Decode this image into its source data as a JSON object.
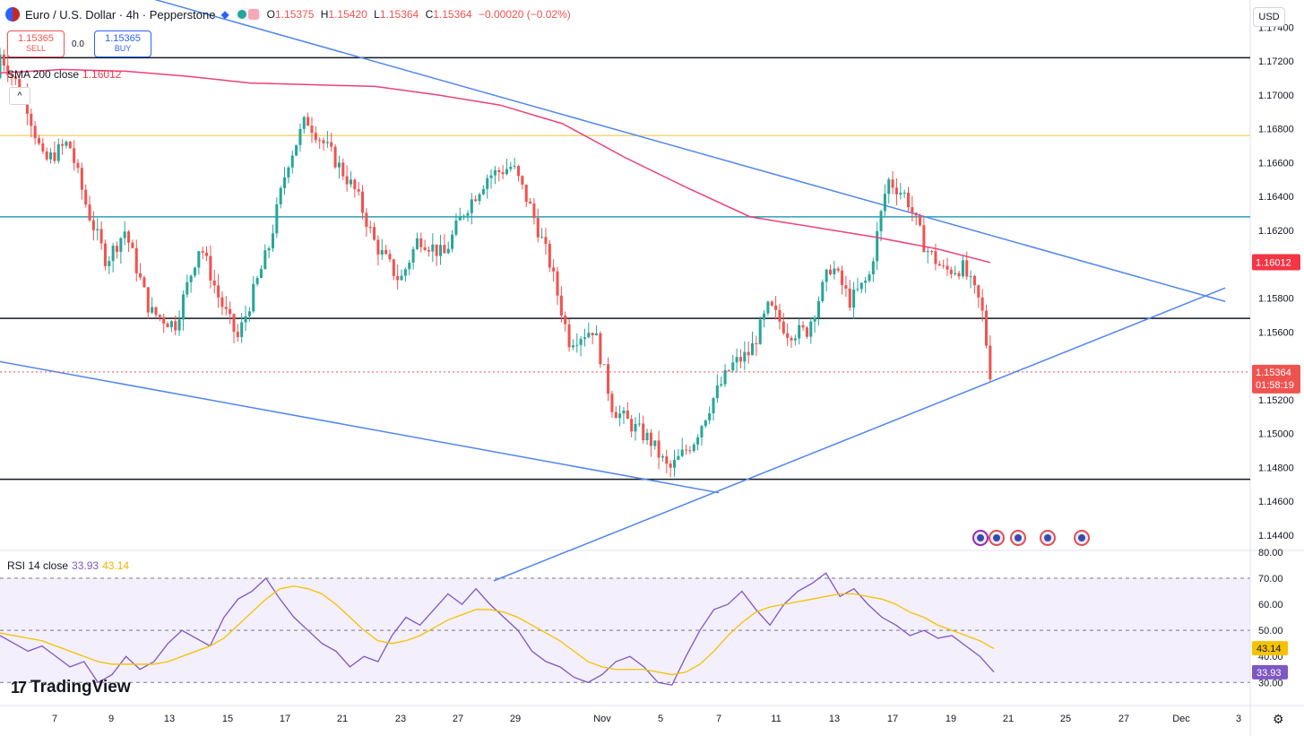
{
  "header": {
    "title": "Euro / U.S. Dollar · 4h · Pepperstone",
    "ohlc": [
      {
        "label": "O",
        "value": "1.15375"
      },
      {
        "label": "H",
        "value": "1.15420"
      },
      {
        "label": "L",
        "value": "1.15364"
      },
      {
        "label": "C",
        "value": "1.15364"
      },
      {
        "label": "",
        "value": "−0.00020 (−0.02%)"
      }
    ]
  },
  "trade": {
    "sell_price": "1.15365",
    "sell_label": "SELL",
    "spread": "0.0",
    "buy_price": "1.15365",
    "buy_label": "BUY"
  },
  "indicators": {
    "sma_label": "SMA 200 close",
    "sma_value": "1.16012",
    "rsi_label": "RSI 14 close",
    "rsi_value": "33.93",
    "rsi_ma_value": "43.14",
    "collapse_symbol": "^"
  },
  "currency": "USD",
  "logo": {
    "mark": "17",
    "text": "TradingView"
  },
  "colors": {
    "up": "#26a69a",
    "down": "#ef5350",
    "sma": "#ec407a",
    "trend": "#4f86f0",
    "rsi": "#7e57c2",
    "rsi_ma": "#f5c200",
    "hline_yellow": "#f6d77a",
    "hline_teal": "#2aa1b3"
  },
  "chart_data": [
    {
      "type": "candlestick",
      "ylim": [
        1.1432,
        1.1755
      ],
      "price_ticks": [
        "1.17400",
        "1.17200",
        "1.17000",
        "1.16800",
        "1.16600",
        "1.16400",
        "1.16200",
        "1.15800",
        "1.15600",
        "1.15200",
        "1.15000",
        "1.14800",
        "1.14600",
        "1.14400"
      ],
      "x_ticks": [
        "7",
        "9",
        "13",
        "15",
        "17",
        "21",
        "23",
        "27",
        "29",
        "Nov",
        "5",
        "7",
        "11",
        "13",
        "17",
        "19",
        "21",
        "25",
        "27",
        "Dec",
        "3"
      ],
      "current_price": "1.15364",
      "countdown": "01:58:19",
      "sma_value_tag": "1.16012",
      "horizontal_levels": [
        {
          "price": 1.1722,
          "color": "black"
        },
        {
          "price": 1.1676,
          "color": "yellow"
        },
        {
          "price": 1.1628,
          "color": "teal"
        },
        {
          "price": 1.1568,
          "color": "black"
        },
        {
          "price": 1.1473,
          "color": "black"
        }
      ],
      "trendlines": [
        {
          "from_x": "Oct 1",
          "from_y": 1.1783,
          "to_x": "Dec 3",
          "to_y": 1.1578
        },
        {
          "from_x": "Oct 1",
          "from_y": 1.1543,
          "to_x": "Nov 8",
          "to_y": 1.1465
        },
        {
          "from_x": "Nov 1",
          "from_y": 1.1413,
          "to_x": "Dec 3",
          "to_y": 1.1586
        }
      ],
      "ohlc_anchor": [
        1.171,
        1.1728,
        1.169,
        1.172
      ],
      "close_path": [
        {
          "x": 0,
          "y": 1.1724
        },
        {
          "x": 0.02,
          "y": 1.1698
        },
        {
          "x": 0.035,
          "y": 1.166
        },
        {
          "x": 0.055,
          "y": 1.1672
        },
        {
          "x": 0.07,
          "y": 1.1632
        },
        {
          "x": 0.085,
          "y": 1.1602
        },
        {
          "x": 0.1,
          "y": 1.162
        },
        {
          "x": 0.12,
          "y": 1.1572
        },
        {
          "x": 0.14,
          "y": 1.1564
        },
        {
          "x": 0.16,
          "y": 1.1612
        },
        {
          "x": 0.175,
          "y": 1.158
        },
        {
          "x": 0.19,
          "y": 1.1556
        },
        {
          "x": 0.215,
          "y": 1.161
        },
        {
          "x": 0.23,
          "y": 1.166
        },
        {
          "x": 0.245,
          "y": 1.1686
        },
        {
          "x": 0.265,
          "y": 1.1665
        },
        {
          "x": 0.285,
          "y": 1.1642
        },
        {
          "x": 0.3,
          "y": 1.1612
        },
        {
          "x": 0.32,
          "y": 1.159
        },
        {
          "x": 0.335,
          "y": 1.1616
        },
        {
          "x": 0.355,
          "y": 1.1605
        },
        {
          "x": 0.37,
          "y": 1.163
        },
        {
          "x": 0.39,
          "y": 1.1652
        },
        {
          "x": 0.41,
          "y": 1.1658
        },
        {
          "x": 0.425,
          "y": 1.1632
        },
        {
          "x": 0.44,
          "y": 1.16
        },
        {
          "x": 0.455,
          "y": 1.1555
        },
        {
          "x": 0.475,
          "y": 1.1562
        },
        {
          "x": 0.49,
          "y": 1.1515
        },
        {
          "x": 0.505,
          "y": 1.1505
        },
        {
          "x": 0.52,
          "y": 1.1496
        },
        {
          "x": 0.535,
          "y": 1.1478
        },
        {
          "x": 0.555,
          "y": 1.1496
        },
        {
          "x": 0.57,
          "y": 1.152
        },
        {
          "x": 0.585,
          "y": 1.154
        },
        {
          "x": 0.6,
          "y": 1.1548
        },
        {
          "x": 0.615,
          "y": 1.1575
        },
        {
          "x": 0.63,
          "y": 1.156
        },
        {
          "x": 0.645,
          "y": 1.156
        },
        {
          "x": 0.665,
          "y": 1.16
        },
        {
          "x": 0.68,
          "y": 1.1578
        },
        {
          "x": 0.695,
          "y": 1.1592
        },
        {
          "x": 0.71,
          "y": 1.165
        },
        {
          "x": 0.725,
          "y": 1.164
        },
        {
          "x": 0.74,
          "y": 1.161
        },
        {
          "x": 0.755,
          "y": 1.1596
        },
        {
          "x": 0.77,
          "y": 1.1598
        },
        {
          "x": 0.785,
          "y": 1.1575
        },
        {
          "x": 0.792,
          "y": 1.1536
        }
      ],
      "sma_path": [
        {
          "x": 0.0,
          "y": 1.1713
        },
        {
          "x": 0.05,
          "y": 1.1715
        },
        {
          "x": 0.1,
          "y": 1.1714
        },
        {
          "x": 0.15,
          "y": 1.1711
        },
        {
          "x": 0.2,
          "y": 1.1707
        },
        {
          "x": 0.25,
          "y": 1.1706
        },
        {
          "x": 0.3,
          "y": 1.1705
        },
        {
          "x": 0.35,
          "y": 1.17
        },
        {
          "x": 0.4,
          "y": 1.1694
        },
        {
          "x": 0.45,
          "y": 1.1683
        },
        {
          "x": 0.5,
          "y": 1.1663
        },
        {
          "x": 0.55,
          "y": 1.1645
        },
        {
          "x": 0.6,
          "y": 1.1628
        },
        {
          "x": 0.65,
          "y": 1.1622
        },
        {
          "x": 0.7,
          "y": 1.1616
        },
        {
          "x": 0.75,
          "y": 1.1609
        },
        {
          "x": 0.792,
          "y": 1.1601
        }
      ]
    },
    {
      "type": "line",
      "name": "RSI 14 close",
      "ylim": [
        27,
        80
      ],
      "y_ticks": [
        "80.00",
        "70.00",
        "60.00",
        "50.00",
        "40.00",
        "30.00"
      ],
      "bands": [
        30,
        50,
        70
      ],
      "series": [
        {
          "name": "RSI",
          "values": [
            48,
            45,
            42,
            44,
            40,
            36,
            38,
            30,
            33,
            40,
            35,
            38,
            45,
            50,
            47,
            44,
            55,
            62,
            65,
            70,
            62,
            55,
            50,
            45,
            42,
            36,
            40,
            38,
            48,
            55,
            52,
            58,
            64,
            60,
            66,
            60,
            55,
            50,
            42,
            38,
            36,
            32,
            30,
            33,
            38,
            40,
            36,
            30,
            29,
            40,
            50,
            58,
            60,
            65,
            58,
            52,
            60,
            65,
            68,
            72,
            63,
            66,
            60,
            55,
            52,
            48,
            50,
            47,
            48,
            44,
            40,
            34
          ]
        },
        {
          "name": "MA",
          "values": [
            49,
            48,
            47,
            46,
            44,
            42,
            40,
            38,
            37,
            37,
            37,
            37,
            38,
            40,
            42,
            44,
            47,
            52,
            57,
            62,
            66,
            67,
            66,
            64,
            60,
            55,
            50,
            46,
            45,
            46,
            48,
            51,
            54,
            56,
            58,
            58,
            57,
            55,
            52,
            49,
            46,
            42,
            38,
            36,
            35,
            35,
            35,
            34,
            33,
            34,
            37,
            42,
            48,
            53,
            57,
            59,
            60,
            61,
            62,
            63,
            64,
            64,
            63,
            62,
            60,
            57,
            55,
            52,
            50,
            48,
            46,
            43
          ]
        }
      ]
    }
  ]
}
